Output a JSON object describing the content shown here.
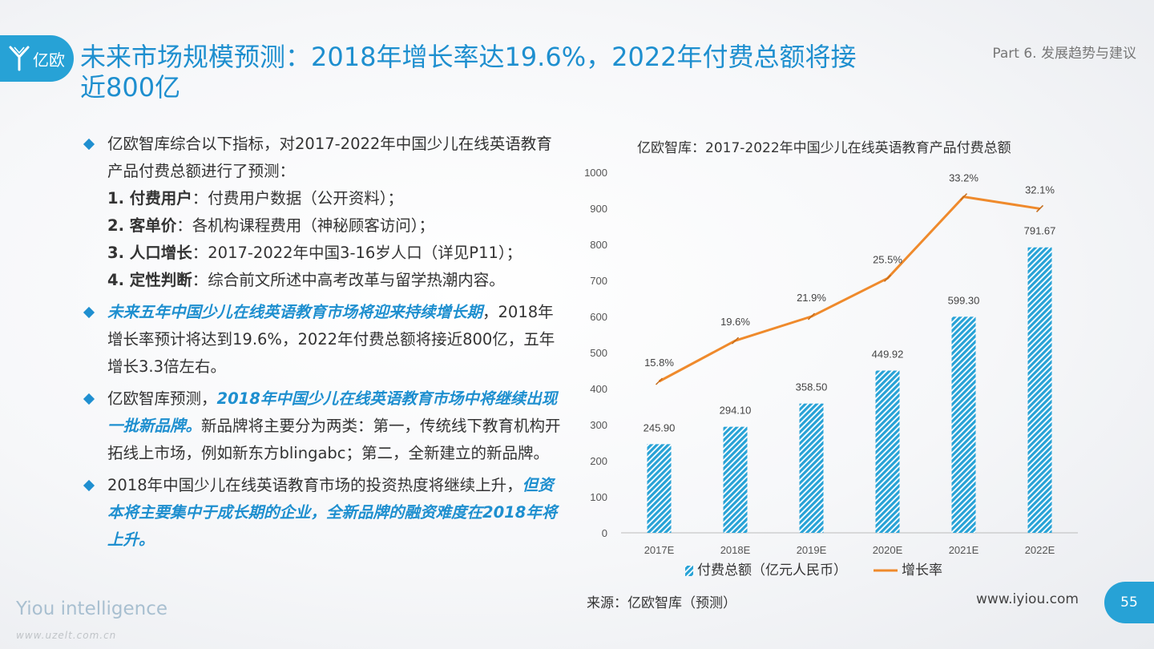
{
  "logo": {
    "text": "亿欧"
  },
  "title": "未来市场规模预测：2018年增长率达19.6%，2022年付费总额将接近800亿",
  "part": "Part 6. 发展趋势与建议",
  "bullets": {
    "b1": {
      "intro": "亿欧智库综合以下指标，对2017-2022年中国少儿在线英语教育产品付费总额进行了预测：",
      "items": [
        {
          "label": "1. 付费用户",
          "text": "：付费用户数据（公开资料）；"
        },
        {
          "label": "2. 客单价",
          "text": "：各机构课程费用（神秘顾客访问）；"
        },
        {
          "label": "3. 人口增长",
          "text": "：2017-2022年中国3-16岁人口（详见P11）；"
        },
        {
          "label": "4. 定性判断",
          "text": "：综合前文所述中高考改革与留学热潮内容。"
        }
      ]
    },
    "b2": {
      "highlight": "未来五年中国少儿在线英语教育市场将迎来持续增长期",
      "text": "，2018年增长率预计将达到19.6%，2022年付费总额将接近800亿，五年增长3.3倍左右。"
    },
    "b3": {
      "pre": "亿欧智库预测，",
      "highlight": "2018年中国少儿在线英语教育市场中将继续出现一批新品牌。",
      "text": "新品牌将主要分为两类：第一，传统线下教育机构开拓线上市场，例如新东方blingabc；第二，全新建立的新品牌。"
    },
    "b4": {
      "pre": "2018年中国少儿在线英语教育市场的投资热度将继续上升，",
      "highlight": "但资本将主要集中于成长期的企业，全新品牌的融资难度在2018年将上升。"
    }
  },
  "chart_title": "亿欧智库：2017-2022年中国少儿在线英语教育产品付费总额",
  "chart_data": {
    "type": "bar",
    "title": "亿欧智库：2017-2022年中国少儿在线英语教育产品付费总额",
    "categories": [
      "2017E",
      "2018E",
      "2019E",
      "2020E",
      "2021E",
      "2022E"
    ],
    "ylim": [
      0,
      1000
    ],
    "yticks": [
      0,
      100,
      200,
      300,
      400,
      500,
      600,
      700,
      800,
      900,
      1000
    ],
    "grid": false,
    "legend": "bottom",
    "series": [
      {
        "name": "付费总额（亿元人民币）",
        "kind": "bar",
        "values": [
          245.9,
          294.1,
          358.5,
          449.92,
          599.3,
          791.67
        ],
        "labels": [
          "245.90",
          "294.10",
          "358.50",
          "449.92",
          "599.30",
          "791.67"
        ],
        "color": "#27a2d6",
        "pattern": "diagonal-hatch"
      },
      {
        "name": "增长率",
        "kind": "line",
        "values": [
          15.8,
          19.6,
          21.9,
          25.5,
          33.2,
          32.1
        ],
        "labels": [
          "15.8%",
          "19.6%",
          "21.9%",
          "25.5%",
          "33.2%",
          "32.1%"
        ],
        "plot_values": [
          420,
          533,
          600,
          706,
          932,
          899
        ],
        "color": "#ef8a2c"
      }
    ]
  },
  "source": "来源：亿欧智库（预测）",
  "url": "www.iyiou.com",
  "page_number": "55",
  "brand": "Yiou intelligence",
  "watermark": "www.uzelt.com.cn"
}
